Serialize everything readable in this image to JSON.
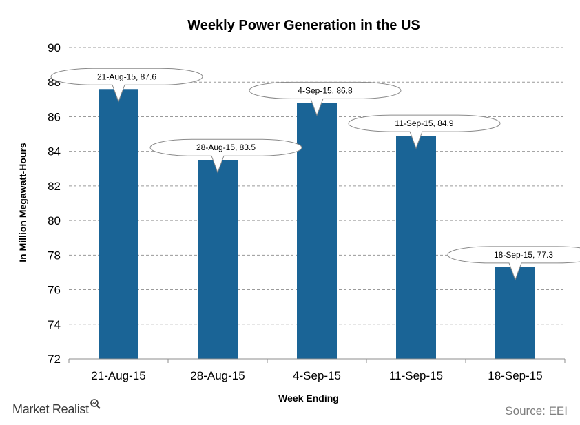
{
  "chart_data": {
    "type": "bar",
    "title": "Weekly  Power Generation  in the US",
    "xlabel": "Week Ending",
    "ylabel": "In Million Megawatt-Hours",
    "categories": [
      "21-Aug-15",
      "28-Aug-15",
      "4-Sep-15",
      "11-Sep-15",
      "18-Sep-15"
    ],
    "values": [
      87.6,
      83.5,
      86.8,
      84.9,
      77.3
    ],
    "data_labels": [
      "21-Aug-15,  87.6",
      "28-Aug-15,  83.5",
      "4-Sep-15,  86.8",
      "11-Sep-15,  84.9",
      "18-Sep-15,  77.3"
    ],
    "ylim": [
      72,
      90
    ],
    "yticks": [
      72,
      74,
      76,
      78,
      80,
      82,
      84,
      86,
      88,
      90
    ],
    "ytick_labels": [
      "72",
      "74",
      "76",
      "78",
      "80",
      "82",
      "84",
      "86",
      "88",
      "90"
    ],
    "grid": true,
    "legend": "none",
    "bar_color": "#1a6496"
  },
  "footer": {
    "brand": "Market Realist",
    "source": "Source: EEI"
  }
}
